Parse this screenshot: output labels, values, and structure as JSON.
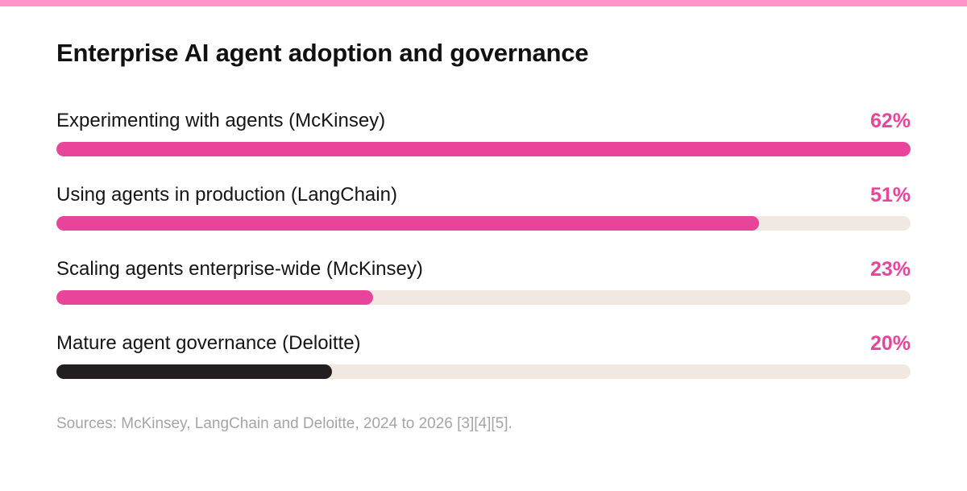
{
  "colors": {
    "accent_bar": "#ff93c9",
    "pink": "#e8459a",
    "dark": "#231f20",
    "track": "#f1e8e2",
    "source_text": "#a5a5a5"
  },
  "chart_data": {
    "type": "bar",
    "orientation": "horizontal",
    "title": "Enterprise AI agent adoption and governance",
    "categories": [
      "Experimenting with agents (McKinsey)",
      "Using agents in production (LangChain)",
      "Scaling agents enterprise-wide (McKinsey)",
      "Mature agent governance (Deloitte)"
    ],
    "values": [
      62,
      51,
      23,
      20
    ],
    "value_labels": [
      "62%",
      "51%",
      "23%",
      "20%"
    ],
    "bar_colors": [
      "#e8459a",
      "#e8459a",
      "#e8459a",
      "#231f20"
    ],
    "value_colors": [
      "#e8459a",
      "#e8459a",
      "#e8459a",
      "#e8459a"
    ],
    "xlim": [
      0,
      62
    ],
    "grid": false,
    "legend": "none",
    "source": "Sources: McKinsey, LangChain and Deloitte, 2024 to 2026 [3][4][5]."
  }
}
